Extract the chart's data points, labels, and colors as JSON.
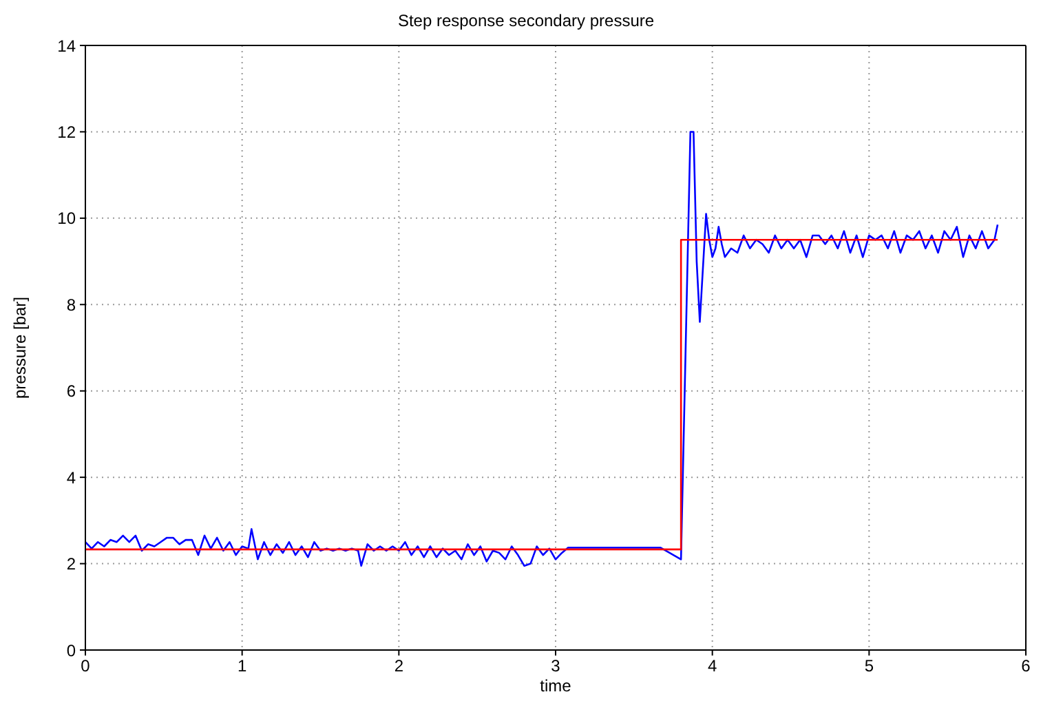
{
  "chart_data": {
    "type": "line",
    "title": "Step response secondary pressure",
    "xlabel": "time",
    "ylabel": "pressure [bar]",
    "xlim": [
      0,
      6
    ],
    "xticks": [
      0,
      1,
      2,
      3,
      4,
      5,
      6
    ],
    "ylim": [
      0,
      14
    ],
    "yticks": [
      0,
      2,
      4,
      6,
      8,
      10,
      12,
      14
    ],
    "grid": true,
    "marker": "none",
    "line_style": "solid",
    "series": [
      {
        "color": "#0000ff",
        "x": [
          0,
          0.04,
          0.08,
          0.12,
          0.16,
          0.2,
          0.24,
          0.28,
          0.32,
          0.36,
          0.4,
          0.44,
          0.48,
          0.52,
          0.56,
          0.6,
          0.64,
          0.68,
          0.72,
          0.76,
          0.8,
          0.84,
          0.88,
          0.92,
          0.96,
          1.0,
          1.04,
          1.06,
          1.1,
          1.14,
          1.18,
          1.22,
          1.26,
          1.3,
          1.34,
          1.38,
          1.42,
          1.46,
          1.5,
          1.54,
          1.58,
          1.62,
          1.66,
          1.7,
          1.74,
          1.76,
          1.8,
          1.84,
          1.88,
          1.92,
          1.96,
          2.0,
          2.04,
          2.08,
          2.12,
          2.16,
          2.2,
          2.24,
          2.28,
          2.32,
          2.36,
          2.4,
          2.44,
          2.48,
          2.52,
          2.56,
          2.6,
          2.64,
          2.68,
          2.72,
          2.76,
          2.8,
          2.84,
          2.88,
          2.92,
          2.96,
          3.0,
          3.04,
          3.08,
          3.67,
          3.8,
          3.86,
          3.88,
          3.9,
          3.92,
          3.96,
          3.98,
          4.0,
          4.02,
          4.04,
          4.06,
          4.08,
          4.12,
          4.16,
          4.2,
          4.24,
          4.28,
          4.32,
          4.36,
          4.4,
          4.44,
          4.48,
          4.52,
          4.56,
          4.6,
          4.64,
          4.68,
          4.72,
          4.76,
          4.8,
          4.84,
          4.88,
          4.92,
          4.96,
          5.0,
          5.04,
          5.08,
          5.12,
          5.16,
          5.2,
          5.24,
          5.28,
          5.32,
          5.36,
          5.4,
          5.44,
          5.48,
          5.52,
          5.56,
          5.6,
          5.64,
          5.68,
          5.72,
          5.76,
          5.8,
          5.82
        ],
        "values": [
          2.5,
          2.35,
          2.5,
          2.4,
          2.55,
          2.5,
          2.65,
          2.5,
          2.65,
          2.3,
          2.45,
          2.4,
          2.5,
          2.6,
          2.6,
          2.45,
          2.55,
          2.55,
          2.2,
          2.65,
          2.35,
          2.6,
          2.3,
          2.5,
          2.2,
          2.4,
          2.35,
          2.8,
          2.1,
          2.5,
          2.2,
          2.45,
          2.25,
          2.5,
          2.2,
          2.4,
          2.15,
          2.5,
          2.3,
          2.35,
          2.3,
          2.35,
          2.3,
          2.35,
          2.3,
          1.95,
          2.45,
          2.3,
          2.4,
          2.3,
          2.4,
          2.3,
          2.5,
          2.2,
          2.4,
          2.15,
          2.4,
          2.15,
          2.35,
          2.2,
          2.3,
          2.1,
          2.45,
          2.2,
          2.4,
          2.05,
          2.3,
          2.25,
          2.1,
          2.4,
          2.2,
          1.95,
          2.0,
          2.4,
          2.2,
          2.35,
          2.1,
          2.25,
          2.37,
          2.37,
          2.1,
          12.0,
          12.0,
          9.0,
          7.6,
          10.1,
          9.5,
          9.1,
          9.3,
          9.8,
          9.4,
          9.1,
          9.3,
          9.2,
          9.6,
          9.3,
          9.5,
          9.4,
          9.2,
          9.6,
          9.3,
          9.5,
          9.3,
          9.5,
          9.1,
          9.6,
          9.6,
          9.4,
          9.6,
          9.3,
          9.7,
          9.2,
          9.6,
          9.1,
          9.6,
          9.5,
          9.6,
          9.3,
          9.7,
          9.2,
          9.6,
          9.5,
          9.7,
          9.3,
          9.6,
          9.2,
          9.7,
          9.5,
          9.8,
          9.1,
          9.6,
          9.3,
          9.7,
          9.3,
          9.5,
          9.85
        ]
      },
      {
        "color": "#ff0000",
        "x": [
          0,
          3.8,
          3.8,
          5.82
        ],
        "values": [
          2.33,
          2.33,
          9.5,
          9.5
        ]
      }
    ]
  }
}
